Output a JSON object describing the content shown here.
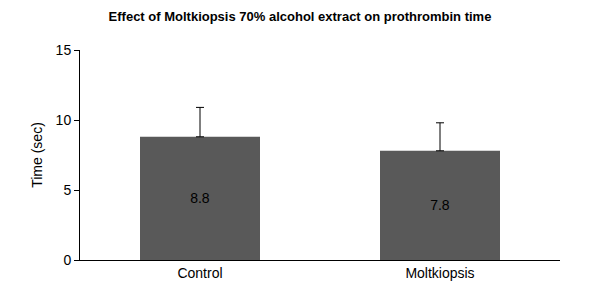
{
  "chart_data": {
    "type": "bar",
    "title": "Effect of Moltkiopsis 70% alcohol extract on prothrombin time",
    "y_label": "Time (sec)",
    "categories": [
      "Control",
      "Moltkiopsis"
    ],
    "values": [
      8.8,
      7.8
    ],
    "errors": [
      2.1,
      2.0
    ],
    "color": "#595959",
    "ylim": [
      0,
      15
    ],
    "yticks": [
      0,
      5,
      10,
      15
    ],
    "grid": false,
    "data_labels": true
  }
}
